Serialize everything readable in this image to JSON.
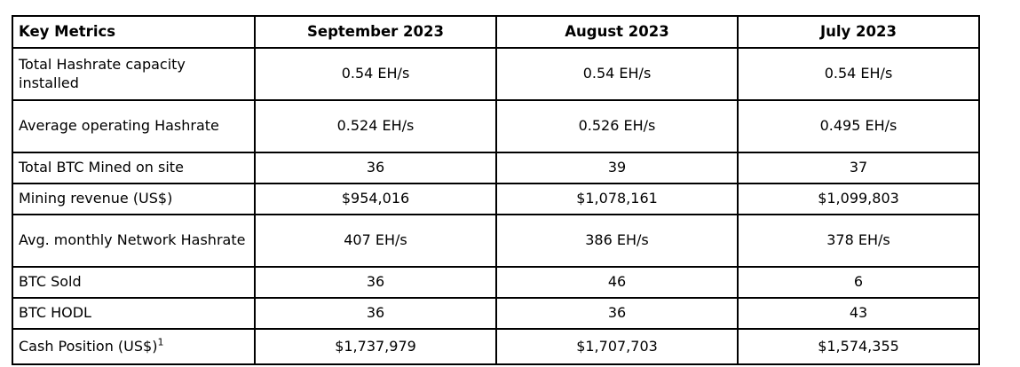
{
  "table": {
    "columns": [
      "Key Metrics",
      "September 2023",
      "August 2023",
      "July 2023"
    ],
    "rows": [
      {
        "metric": "Total Hashrate capacity installed",
        "superscript": "",
        "values": [
          "0.54 EH/s",
          "0.54 EH/s",
          "0.54 EH/s"
        ],
        "size": "h2"
      },
      {
        "metric": "Average operating Hashrate",
        "superscript": "",
        "values": [
          "0.524 EH/s",
          "0.526 EH/s",
          "0.495 EH/s"
        ],
        "size": "h2"
      },
      {
        "metric": "Total BTC Mined on site",
        "superscript": "",
        "values": [
          "36",
          "39",
          "37"
        ],
        "size": "h1"
      },
      {
        "metric": "Mining revenue (US$)",
        "superscript": "",
        "values": [
          "$954,016",
          "$1,078,161",
          "$1,099,803"
        ],
        "size": "h1"
      },
      {
        "metric": "Avg. monthly Network Hashrate",
        "superscript": "",
        "values": [
          "407 EH/s",
          "386 EH/s",
          "378 EH/s"
        ],
        "size": "h2"
      },
      {
        "metric": "BTC Sold",
        "superscript": "",
        "values": [
          "36",
          "46",
          "6"
        ],
        "size": "h1"
      },
      {
        "metric": "BTC HODL",
        "superscript": "",
        "values": [
          "36",
          "36",
          "43"
        ],
        "size": "h1"
      },
      {
        "metric": "Cash Position (US$)",
        "superscript": "1",
        "values": [
          "$1,737,979",
          "$1,707,703",
          "$1,574,355"
        ],
        "size": "hl"
      }
    ]
  },
  "colors": {
    "border": "#000000",
    "background": "#ffffff",
    "text": "#000000"
  }
}
